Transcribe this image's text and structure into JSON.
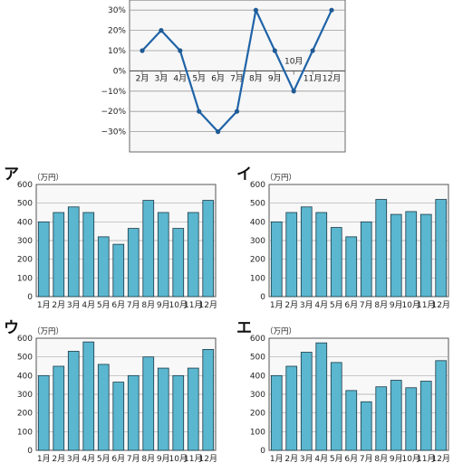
{
  "chart_data": [
    {
      "type": "line",
      "categories": [
        "2月",
        "3月",
        "4月",
        "5月",
        "6月",
        "7月",
        "8月",
        "9月",
        "10月",
        "11月",
        "12月"
      ],
      "values": [
        10,
        20,
        10,
        -20,
        -30,
        -20,
        30,
        10,
        -10,
        10,
        30
      ],
      "ytick_labels": [
        "30%",
        "20%",
        "10%",
        "0%",
        "−10%",
        "−20%",
        "−30%"
      ],
      "ylim": [
        -40,
        35
      ],
      "grid": true,
      "colors": {
        "line": "#1f63a8",
        "point": "#1f5a94",
        "grid": "#9a9a9a",
        "plot_bg": "#f7f7f7"
      }
    },
    {
      "type": "bar",
      "label": "ア",
      "unit": "（万円）",
      "categories": [
        "1月",
        "2月",
        "3月",
        "4月",
        "5月",
        "6月",
        "7月",
        "8月",
        "9月",
        "10月",
        "11月",
        "12月"
      ],
      "values": [
        400,
        450,
        480,
        450,
        320,
        280,
        365,
        515,
        450,
        365,
        450,
        515
      ],
      "ytick_labels": [
        "600",
        "500",
        "400",
        "300",
        "200",
        "100",
        "0"
      ],
      "ylim": [
        0,
        600
      ],
      "grid": true,
      "colors": {
        "bar": "#5ab7cf",
        "bar_edge": "#1d3b48"
      }
    },
    {
      "type": "bar",
      "label": "イ",
      "unit": "（万円）",
      "categories": [
        "1月",
        "2月",
        "3月",
        "4月",
        "5月",
        "6月",
        "7月",
        "8月",
        "9月",
        "10月",
        "11月",
        "12月"
      ],
      "values": [
        400,
        450,
        480,
        450,
        370,
        320,
        400,
        520,
        440,
        455,
        440,
        520
      ],
      "ytick_labels": [
        "600",
        "500",
        "400",
        "300",
        "200",
        "100",
        "0"
      ],
      "ylim": [
        0,
        600
      ],
      "grid": true,
      "colors": {
        "bar": "#5ab7cf",
        "bar_edge": "#1d3b48"
      }
    },
    {
      "type": "bar",
      "label": "ウ",
      "unit": "（万円）",
      "categories": [
        "1月",
        "2月",
        "3月",
        "4月",
        "5月",
        "6月",
        "7月",
        "8月",
        "9月",
        "10月",
        "11月",
        "12月"
      ],
      "values": [
        400,
        450,
        530,
        580,
        460,
        365,
        400,
        500,
        440,
        400,
        440,
        540
      ],
      "ytick_labels": [
        "600",
        "500",
        "400",
        "300",
        "200",
        "100",
        "0"
      ],
      "ylim": [
        0,
        600
      ],
      "grid": true,
      "colors": {
        "bar": "#5ab7cf",
        "bar_edge": "#1d3b48"
      }
    },
    {
      "type": "bar",
      "label": "エ",
      "unit": "（万円）",
      "categories": [
        "1月",
        "2月",
        "3月",
        "4月",
        "5月",
        "6月",
        "7月",
        "8月",
        "9月",
        "10月",
        "11月",
        "12月"
      ],
      "values": [
        400,
        450,
        525,
        575,
        470,
        320,
        260,
        340,
        375,
        335,
        370,
        480
      ],
      "ytick_labels": [
        "600",
        "500",
        "400",
        "300",
        "200",
        "100",
        "0"
      ],
      "ylim": [
        0,
        600
      ],
      "grid": true,
      "colors": {
        "bar": "#5ab7cf",
        "bar_edge": "#1d3b48"
      }
    }
  ]
}
